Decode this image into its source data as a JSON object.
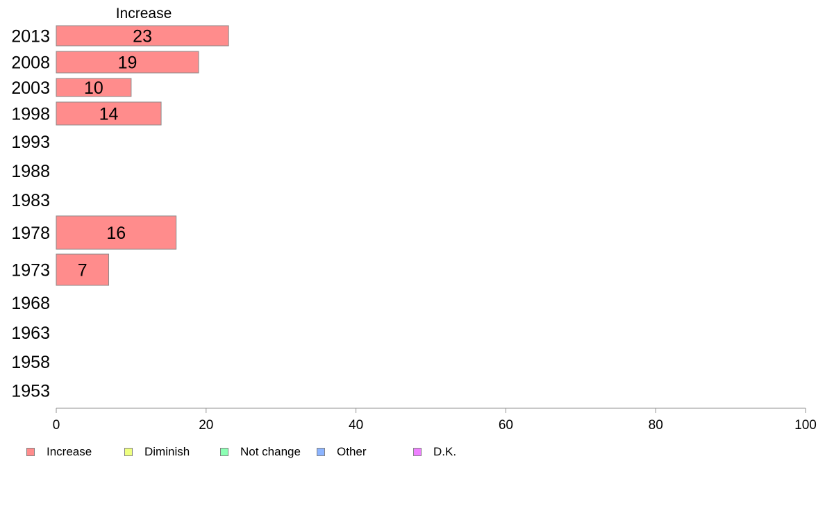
{
  "chart_data": {
    "type": "bar",
    "orientation": "horizontal",
    "title": "Increase",
    "categories": [
      "2013",
      "2008",
      "2003",
      "1998",
      "1993",
      "1988",
      "1983",
      "1978",
      "1973",
      "1968",
      "1963",
      "1958",
      "1953"
    ],
    "series": [
      {
        "name": "Increase",
        "values": [
          23,
          19,
          10,
          14,
          null,
          null,
          null,
          16,
          7,
          null,
          null,
          null,
          null
        ]
      }
    ],
    "xlim": [
      0,
      100
    ],
    "xticks": [
      0,
      20,
      40,
      60,
      80,
      100
    ],
    "grid": false,
    "legend_position": "bottom",
    "legend": [
      {
        "label": "Increase",
        "color": "#ff8c8c"
      },
      {
        "label": "Diminish",
        "color": "#eeff80"
      },
      {
        "label": "Not change",
        "color": "#8cffb4"
      },
      {
        "label": "Other",
        "color": "#8cb4ff"
      },
      {
        "label": "D.K.",
        "color": "#ee80ff"
      }
    ]
  }
}
